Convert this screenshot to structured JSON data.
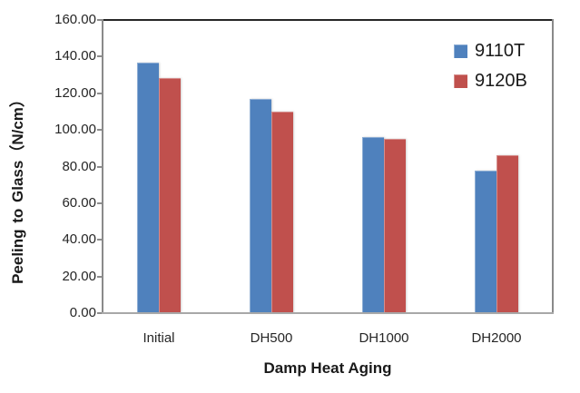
{
  "chart_data": {
    "type": "bar",
    "title": "",
    "xlabel": "Damp Heat Aging",
    "ylabel": "Peeling to Glass（N/cm）",
    "categories": [
      "Initial",
      "DH500",
      "DH1000",
      "DH2000"
    ],
    "series": [
      {
        "name": "9110T",
        "color": "#4F81BD",
        "values": [
          136.5,
          117,
          96,
          78
        ]
      },
      {
        "name": "9120B",
        "color": "#C0504D",
        "values": [
          128.5,
          110,
          95,
          86
        ]
      }
    ],
    "ylim": [
      0,
      160
    ],
    "yticks": [
      {
        "value": 160,
        "label": "160.00"
      },
      {
        "value": 140,
        "label": "140.00"
      },
      {
        "value": 120,
        "label": "120.00"
      },
      {
        "value": 100,
        "label": "100.00"
      },
      {
        "value": 80,
        "label": "80.00"
      },
      {
        "value": 60,
        "label": "60.00"
      },
      {
        "value": 40,
        "label": "40.00"
      },
      {
        "value": 20,
        "label": "20.00"
      },
      {
        "value": 0,
        "label": "0.00"
      }
    ],
    "grid": false,
    "legend_position": "top-right",
    "colors": {
      "plot_border_top": "#262626",
      "plot_border_side": "#8a8a8a",
      "plot_border_bottom": "#a8a8a8",
      "tick_mark": "#8c8c8c",
      "text": "#262626"
    }
  }
}
